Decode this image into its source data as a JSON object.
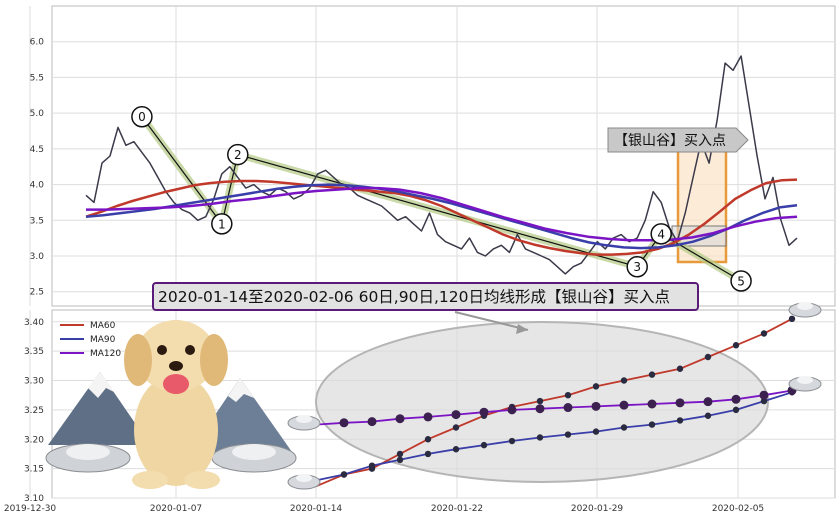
{
  "chart_data": [
    {
      "type": "line",
      "panel": "upper",
      "x_ticks": [
        "2019-12-30",
        "2020-01-07",
        "2020-01-14",
        "2020-01-22",
        "2020-01-29",
        "2020-02-05"
      ],
      "y_ticks": [
        "2.5",
        "3.0",
        "3.5",
        "4.0",
        "4.5",
        "5.0",
        "5.5",
        "6.0"
      ],
      "ylim": [
        2.3,
        6.5
      ],
      "grid": true,
      "series": [
        {
          "key": "price",
          "color": "#3a3a4a",
          "values": [
            3.85,
            3.75,
            4.3,
            4.4,
            4.8,
            4.55,
            4.6,
            4.45,
            4.3,
            4.1,
            3.9,
            3.75,
            3.65,
            3.6,
            3.5,
            3.55,
            3.8,
            4.15,
            4.25,
            4.1,
            3.95,
            4.0,
            3.9,
            3.85,
            3.95,
            3.9,
            3.8,
            3.85,
            3.95,
            4.15,
            4.2,
            4.1,
            4.0,
            3.95,
            3.85,
            3.8,
            3.75,
            3.7,
            3.6,
            3.5,
            3.55,
            3.45,
            3.35,
            3.6,
            3.3,
            3.2,
            3.15,
            3.1,
            3.25,
            3.05,
            3.0,
            3.1,
            3.15,
            3.05,
            3.3,
            3.1,
            3.05,
            3.0,
            2.95,
            2.85,
            2.75,
            2.85,
            2.9,
            3.05,
            3.2,
            3.1,
            3.25,
            3.3,
            3.2,
            3.25,
            3.5,
            3.9,
            3.75,
            3.4,
            3.2,
            3.6,
            4.1,
            4.6,
            4.3,
            4.9,
            5.7,
            5.6,
            5.8,
            5.1,
            4.4,
            3.8,
            4.1,
            3.5,
            3.15,
            3.25
          ]
        },
        {
          "key": "ma60",
          "color": "#c0392b",
          "values": [
            3.55,
            3.62,
            3.7,
            3.77,
            3.83,
            3.89,
            3.94,
            3.99,
            4.02,
            4.04,
            4.05,
            4.05,
            4.04,
            4.02,
            4.0,
            3.98,
            3.96,
            3.94,
            3.92,
            3.9,
            3.88,
            3.84,
            3.78,
            3.7,
            3.6,
            3.5,
            3.4,
            3.3,
            3.22,
            3.16,
            3.11,
            3.07,
            3.04,
            3.02,
            3.02,
            3.03,
            3.05,
            3.1,
            3.18,
            3.3,
            3.45,
            3.62,
            3.8,
            3.92,
            4.02,
            4.06,
            4.07
          ]
        },
        {
          "key": "ma90",
          "color": "#3a3ea8",
          "values": [
            3.55,
            3.57,
            3.6,
            3.63,
            3.66,
            3.7,
            3.74,
            3.78,
            3.82,
            3.86,
            3.9,
            3.94,
            3.97,
            3.99,
            4.0,
            3.99,
            3.97,
            3.94,
            3.9,
            3.85,
            3.8,
            3.74,
            3.67,
            3.6,
            3.53,
            3.46,
            3.39,
            3.32,
            3.25,
            3.19,
            3.15,
            3.12,
            3.11,
            3.12,
            3.15,
            3.2,
            3.28,
            3.38,
            3.5,
            3.6,
            3.68,
            3.71
          ]
        },
        {
          "key": "ma120",
          "color": "#7a14c4",
          "values": [
            3.65,
            3.65,
            3.66,
            3.67,
            3.68,
            3.7,
            3.73,
            3.77,
            3.8,
            3.84,
            3.88,
            3.91,
            3.93,
            3.95,
            3.95,
            3.93,
            3.88,
            3.81,
            3.72,
            3.63,
            3.54,
            3.46,
            3.38,
            3.32,
            3.27,
            3.24,
            3.22,
            3.22,
            3.23,
            3.26,
            3.32,
            3.41,
            3.48,
            3.53,
            3.55
          ]
        }
      ],
      "patterns": [
        {
          "label": "0",
          "date_index": 7,
          "value": 4.95
        },
        {
          "label": "1",
          "date_index": 17,
          "value": 3.45
        },
        {
          "label": "2",
          "date_index": 19,
          "value": 4.42
        },
        {
          "label": "3",
          "date_index": 69,
          "value": 2.85
        },
        {
          "label": "4",
          "date_index": 72,
          "value": 3.31
        },
        {
          "label": "5",
          "date_index": 82,
          "value": 2.65
        }
      ],
      "annotation_label": "【银山谷】买入点",
      "callout": "2020-01-14至2020-02-06 60日,90日,120日均线形成【银山谷】买入点"
    },
    {
      "type": "line",
      "panel": "lower",
      "x_ticks": [
        "2019-12-30",
        "2020-01-07",
        "2020-01-14",
        "2020-01-22",
        "2020-01-29",
        "2020-02-05"
      ],
      "y_ticks": [
        "3.10",
        "3.15",
        "3.20",
        "3.25",
        "3.30",
        "3.35",
        "3.40"
      ],
      "ylim": [
        3.1,
        3.42
      ],
      "legend": [
        "MA60",
        "MA90",
        "MA120"
      ],
      "legend_position": "top-left",
      "x_dates_index": [
        0,
        1,
        2,
        3,
        4,
        5,
        6,
        7,
        8,
        9,
        10,
        11,
        12,
        13,
        14,
        15,
        16,
        17
      ],
      "series": [
        {
          "name": "MA60",
          "color": "#c0392b",
          "values": [
            3.12,
            3.14,
            3.15,
            3.175,
            3.2,
            3.22,
            3.24,
            3.255,
            3.265,
            3.275,
            3.29,
            3.3,
            3.31,
            3.32,
            3.34,
            3.36,
            3.38,
            3.405
          ]
        },
        {
          "name": "MA90",
          "color": "#3a3ea8",
          "values": [
            3.13,
            3.14,
            3.155,
            3.165,
            3.175,
            3.183,
            3.19,
            3.197,
            3.203,
            3.208,
            3.213,
            3.22,
            3.225,
            3.232,
            3.24,
            3.25,
            3.265,
            3.28
          ]
        },
        {
          "name": "MA120",
          "color": "#7a14c4",
          "values": [
            3.225,
            3.228,
            3.23,
            3.235,
            3.238,
            3.242,
            3.246,
            3.25,
            3.252,
            3.254,
            3.256,
            3.258,
            3.26,
            3.262,
            3.264,
            3.268,
            3.275,
            3.283
          ]
        }
      ]
    }
  ]
}
